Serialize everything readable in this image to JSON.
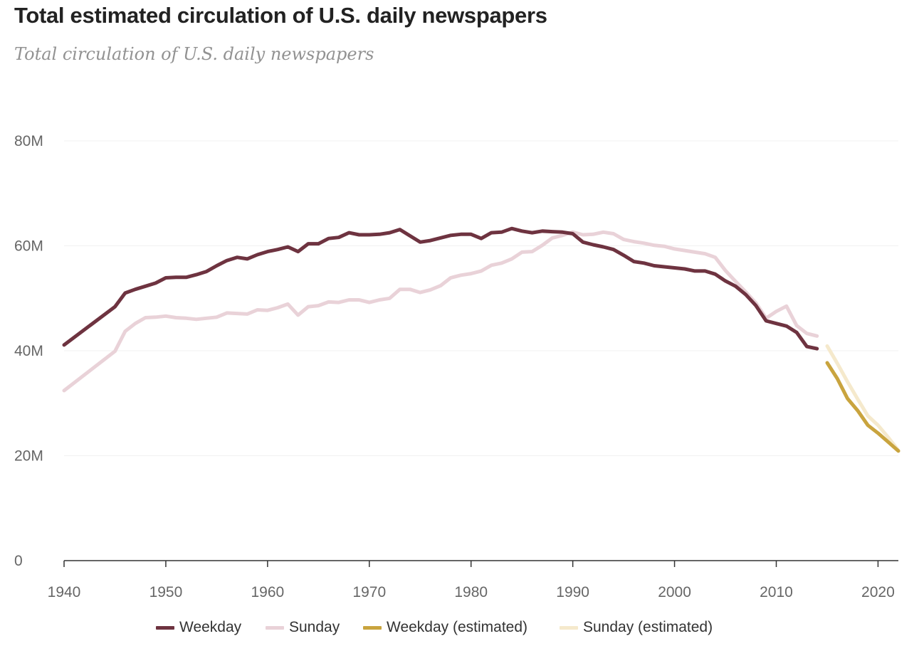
{
  "title": "Total estimated circulation of U.S. daily newspapers",
  "subtitle": "Total circulation of U.S. daily newspapers",
  "colors": {
    "weekday": "#6e3340",
    "sunday": "#e9d2d8",
    "weekday_est": "#c9a43e",
    "sunday_est": "#f5e9cc",
    "grid": "#f1f1f1",
    "axis": "#333333"
  },
  "legend": [
    {
      "label": "Weekday",
      "color": "#6e3340"
    },
    {
      "label": "Sunday",
      "color": "#e9d2d8"
    },
    {
      "label": "Weekday (estimated)",
      "color": "#c9a43e"
    },
    {
      "label": "Sunday (estimated)",
      "color": "#f5e9cc"
    }
  ],
  "chart_data": {
    "type": "line",
    "title": "Total estimated circulation of U.S. daily newspapers",
    "subtitle": "Total circulation of U.S. daily newspapers",
    "xlabel": "",
    "ylabel": "",
    "xlim": [
      1940,
      2022
    ],
    "ylim": [
      0,
      80000000
    ],
    "x_ticks": [
      1940,
      1950,
      1960,
      1970,
      1980,
      1990,
      2000,
      2010,
      2020
    ],
    "y_ticks": [
      {
        "value": 0,
        "label": "0"
      },
      {
        "value": 20000000,
        "label": "20M"
      },
      {
        "value": 40000000,
        "label": "40M"
      },
      {
        "value": 60000000,
        "label": "60M"
      },
      {
        "value": 80000000,
        "label": "80M"
      }
    ],
    "grid": true,
    "legend_position": "bottom",
    "series": [
      {
        "name": "Weekday",
        "color": "#6e3340",
        "x": [
          1940,
          1945,
          1946,
          1947,
          1948,
          1949,
          1950,
          1951,
          1952,
          1953,
          1954,
          1955,
          1956,
          1957,
          1958,
          1959,
          1960,
          1961,
          1962,
          1963,
          1964,
          1965,
          1966,
          1967,
          1968,
          1969,
          1970,
          1971,
          1972,
          1973,
          1974,
          1975,
          1976,
          1977,
          1978,
          1979,
          1980,
          1981,
          1982,
          1983,
          1984,
          1985,
          1986,
          1987,
          1988,
          1989,
          1990,
          1991,
          1992,
          1993,
          1994,
          1995,
          1996,
          1997,
          1998,
          1999,
          2000,
          2001,
          2002,
          2003,
          2004,
          2005,
          2006,
          2007,
          2008,
          2009,
          2010,
          2011,
          2012,
          2013,
          2014
        ],
        "y": [
          41100000,
          48400000,
          51000000,
          51700000,
          52300000,
          52900000,
          53900000,
          54000000,
          54000000,
          54500000,
          55100000,
          56200000,
          57200000,
          57800000,
          57500000,
          58300000,
          58900000,
          59300000,
          59800000,
          58900000,
          60400000,
          60400000,
          61400000,
          61600000,
          62500000,
          62100000,
          62100000,
          62200000,
          62500000,
          63100000,
          61900000,
          60700000,
          61000000,
          61500000,
          62000000,
          62200000,
          62200000,
          61400000,
          62500000,
          62600000,
          63300000,
          62800000,
          62500000,
          62800000,
          62700000,
          62600000,
          62300000,
          60700000,
          60200000,
          59800000,
          59300000,
          58200000,
          57000000,
          56700000,
          56200000,
          56000000,
          55800000,
          55600000,
          55200000,
          55200000,
          54600000,
          53300000,
          52300000,
          50700000,
          48600000,
          45700000,
          45200000,
          44700000,
          43500000,
          40800000,
          40400000
        ]
      },
      {
        "name": "Sunday",
        "color": "#e9d2d8",
        "x": [
          1940,
          1945,
          1946,
          1947,
          1948,
          1949,
          1950,
          1951,
          1952,
          1953,
          1954,
          1955,
          1956,
          1957,
          1958,
          1959,
          1960,
          1961,
          1962,
          1963,
          1964,
          1965,
          1966,
          1967,
          1968,
          1969,
          1970,
          1971,
          1972,
          1973,
          1974,
          1975,
          1976,
          1977,
          1978,
          1979,
          1980,
          1981,
          1982,
          1983,
          1984,
          1985,
          1986,
          1987,
          1988,
          1989,
          1990,
          1991,
          1992,
          1993,
          1994,
          1995,
          1996,
          1997,
          1998,
          1999,
          2000,
          2001,
          2002,
          2003,
          2004,
          2005,
          2006,
          2007,
          2008,
          2009,
          2010,
          2011,
          2012,
          2013,
          2014
        ],
        "y": [
          32400000,
          39900000,
          43700000,
          45200000,
          46300000,
          46400000,
          46600000,
          46300000,
          46200000,
          46000000,
          46200000,
          46400000,
          47200000,
          47100000,
          47000000,
          47800000,
          47700000,
          48200000,
          48900000,
          46800000,
          48400000,
          48600000,
          49300000,
          49200000,
          49700000,
          49700000,
          49200000,
          49700000,
          50000000,
          51700000,
          51700000,
          51100000,
          51600000,
          52400000,
          53900000,
          54400000,
          54700000,
          55200000,
          56300000,
          56700000,
          57500000,
          58800000,
          58900000,
          60100000,
          61500000,
          62000000,
          62600000,
          62100000,
          62200000,
          62600000,
          62300000,
          61200000,
          60800000,
          60500000,
          60100000,
          59900000,
          59400000,
          59100000,
          58800000,
          58500000,
          57800000,
          55300000,
          53200000,
          51200000,
          49100000,
          46200000,
          47500000,
          48500000,
          44800000,
          43300000,
          42800000
        ]
      },
      {
        "name": "Weekday (estimated)",
        "color": "#c9a43e",
        "x": [
          2015,
          2016,
          2017,
          2018,
          2019,
          2020,
          2021,
          2022
        ],
        "y": [
          37700000,
          34700000,
          30900000,
          28600000,
          25800000,
          24300000,
          22600000,
          20900000
        ]
      },
      {
        "name": "Sunday (estimated)",
        "color": "#f5e9cc",
        "x": [
          2015,
          2016,
          2017,
          2018,
          2019,
          2020,
          2021,
          2022
        ],
        "y": [
          40900000,
          37600000,
          34100000,
          30800000,
          27600000,
          25800000,
          23500000,
          21000000
        ]
      }
    ]
  }
}
